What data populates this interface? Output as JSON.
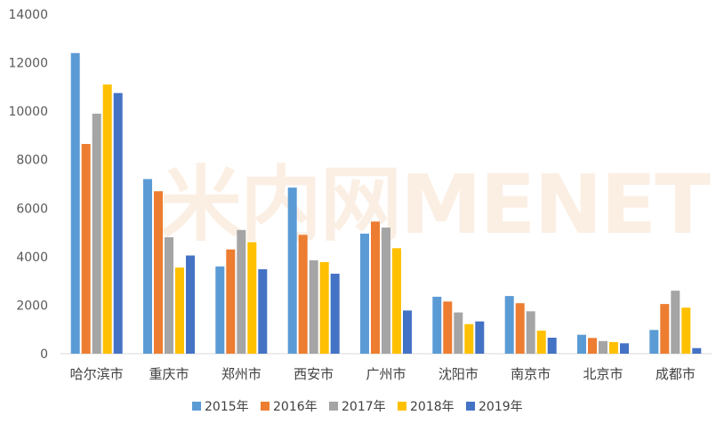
{
  "watermark": "米内网MENET",
  "chart_data": {
    "type": "bar",
    "title": "",
    "xlabel": "",
    "ylabel": "",
    "ylim": [
      0,
      14000
    ],
    "yticks": [
      0,
      2000,
      4000,
      6000,
      8000,
      10000,
      12000,
      14000
    ],
    "grid": false,
    "legend_position": "bottom",
    "categories": [
      "哈尔滨市",
      "重庆市",
      "郑州市",
      "西安市",
      "广州市",
      "沈阳市",
      "南京市",
      "北京市",
      "成都市"
    ],
    "series": [
      {
        "name": "2015年",
        "color": "#5b9bd5",
        "values": [
          12400,
          7200,
          3600,
          6850,
          4950,
          2350,
          2380,
          780,
          980
        ]
      },
      {
        "name": "2016年",
        "color": "#ed7d31",
        "values": [
          8650,
          6700,
          4300,
          4900,
          5450,
          2150,
          2080,
          650,
          2050
        ]
      },
      {
        "name": "2017年",
        "color": "#a5a5a5",
        "values": [
          9900,
          4800,
          5100,
          3850,
          5200,
          1700,
          1750,
          520,
          2600
        ]
      },
      {
        "name": "2018年",
        "color": "#ffc000",
        "values": [
          11100,
          3550,
          4600,
          3780,
          4350,
          1220,
          950,
          480,
          1900
        ]
      },
      {
        "name": "2019年",
        "color": "#4472c4",
        "values": [
          10750,
          4050,
          3480,
          3300,
          1780,
          1330,
          660,
          430,
          230
        ]
      }
    ]
  }
}
